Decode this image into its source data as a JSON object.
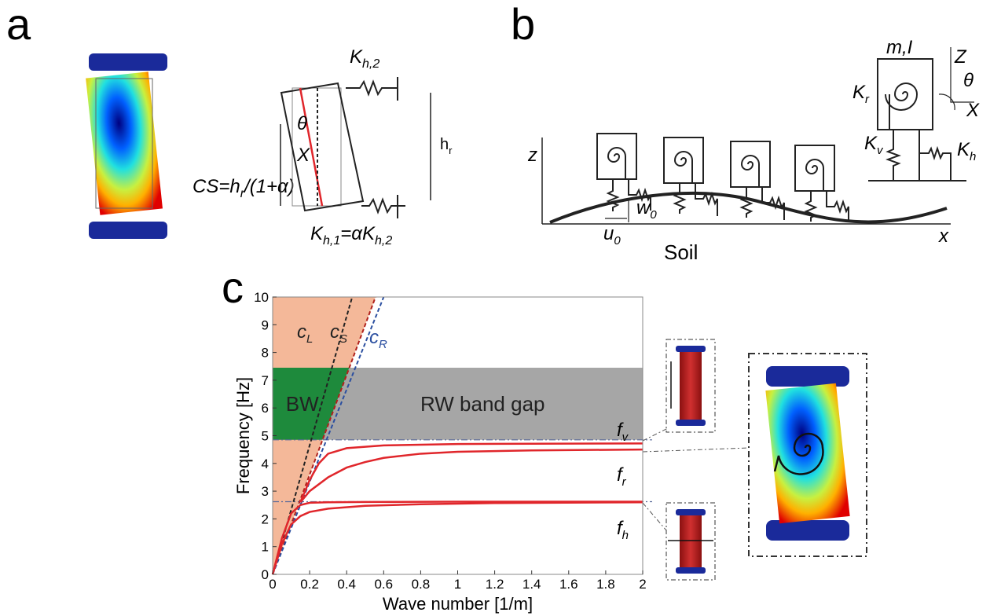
{
  "panel_a": {
    "label": "a",
    "cs_main": "CS=h",
    "cs_sub": "r",
    "cs_rest": "/(1+α)",
    "theta": "θ",
    "x": "X",
    "h": "h",
    "h_sub": "r",
    "k_top": "K",
    "k_top_sub": "h,2",
    "k_bot": "K",
    "k_bot_sub": "h,1",
    "k_bot_rest": "=αK",
    "k_bot_sub2": "h,2"
  },
  "panel_b": {
    "label": "b",
    "z": "z",
    "x": "x",
    "w": "w",
    "w_sub": "0",
    "u": "u",
    "u_sub": "0",
    "soil": "Soil",
    "mass": "m,I",
    "Z": "Z",
    "X": "X",
    "theta": "θ",
    "kr": "K",
    "kr_sub": "r",
    "kv": "K",
    "kv_sub": "v",
    "kh": "K",
    "kh_sub": "h"
  },
  "chart_data": {
    "type": "line",
    "label": "c",
    "xlabel": "Wave number [1/m]",
    "ylabel": "Frequency [Hz]",
    "xlim": [
      0,
      2
    ],
    "ylim": [
      0,
      10
    ],
    "xticks": [
      0,
      0.2,
      0.4,
      0.6,
      0.8,
      1,
      1.2,
      1.4,
      1.6,
      1.8,
      2
    ],
    "yticks": [
      0,
      1,
      2,
      3,
      4,
      5,
      6,
      7,
      8,
      9,
      10
    ],
    "wedge_color": "#f4b899",
    "series": [
      {
        "color": "#222222",
        "dashed": true,
        "x": [
          0,
          0.43
        ],
        "values": [
          0,
          10
        ]
      },
      {
        "color": "#b0201c",
        "dashed": true,
        "x": [
          0,
          0.556
        ],
        "values": [
          0,
          10
        ]
      },
      {
        "color": "#2b4fa0",
        "dashed": true,
        "x": [
          0,
          0.6
        ],
        "values": [
          0,
          10
        ]
      },
      {
        "color": "#e0262b",
        "dashed": false,
        "x": [
          0,
          0.05,
          0.1,
          0.15,
          0.2,
          0.3,
          0.5,
          1,
          2
        ],
        "values": [
          0,
          1.3,
          2.2,
          2.5,
          2.58,
          2.6,
          2.61,
          2.62,
          2.62
        ]
      },
      {
        "color": "#e0262b",
        "dashed": false,
        "x": [
          0,
          0.05,
          0.1,
          0.15,
          0.2,
          0.3,
          0.5,
          0.8,
          1.2,
          2
        ],
        "values": [
          0,
          1.1,
          1.8,
          2.1,
          2.25,
          2.37,
          2.47,
          2.53,
          2.57,
          2.6
        ]
      },
      {
        "color": "#e0262b",
        "dashed": false,
        "x": [
          0.15,
          0.2,
          0.25,
          0.3,
          0.4,
          0.6,
          1,
          2
        ],
        "values": [
          2.6,
          3.4,
          4.0,
          4.35,
          4.55,
          4.65,
          4.7,
          4.72
        ]
      },
      {
        "color": "#e0262b",
        "dashed": false,
        "x": [
          0.15,
          0.2,
          0.3,
          0.4,
          0.5,
          0.6,
          0.8,
          1,
          1.4,
          2
        ],
        "values": [
          2.6,
          3.0,
          3.5,
          3.85,
          4.05,
          4.2,
          4.35,
          4.42,
          4.47,
          4.5
        ]
      }
    ],
    "line_labels": [
      {
        "text": "c",
        "sub": "L",
        "color": "#222222"
      },
      {
        "text": "c",
        "sub": "S",
        "color": "#222222"
      },
      {
        "text": "c",
        "sub": "R",
        "color": "#2b4fa0"
      }
    ],
    "bands": [
      {
        "label": "BW",
        "color": "#1e8a3c",
        "ylim": [
          4.85,
          7.45
        ]
      },
      {
        "label": "RW band gap",
        "color": "#a6a6a6",
        "ylim": [
          4.85,
          7.45
        ]
      }
    ],
    "reference_lines": [
      4.85,
      2.62
    ],
    "freq_labels": [
      {
        "text": "f",
        "sub": "v"
      },
      {
        "text": "f",
        "sub": "r"
      },
      {
        "text": "f",
        "sub": "h"
      }
    ]
  }
}
